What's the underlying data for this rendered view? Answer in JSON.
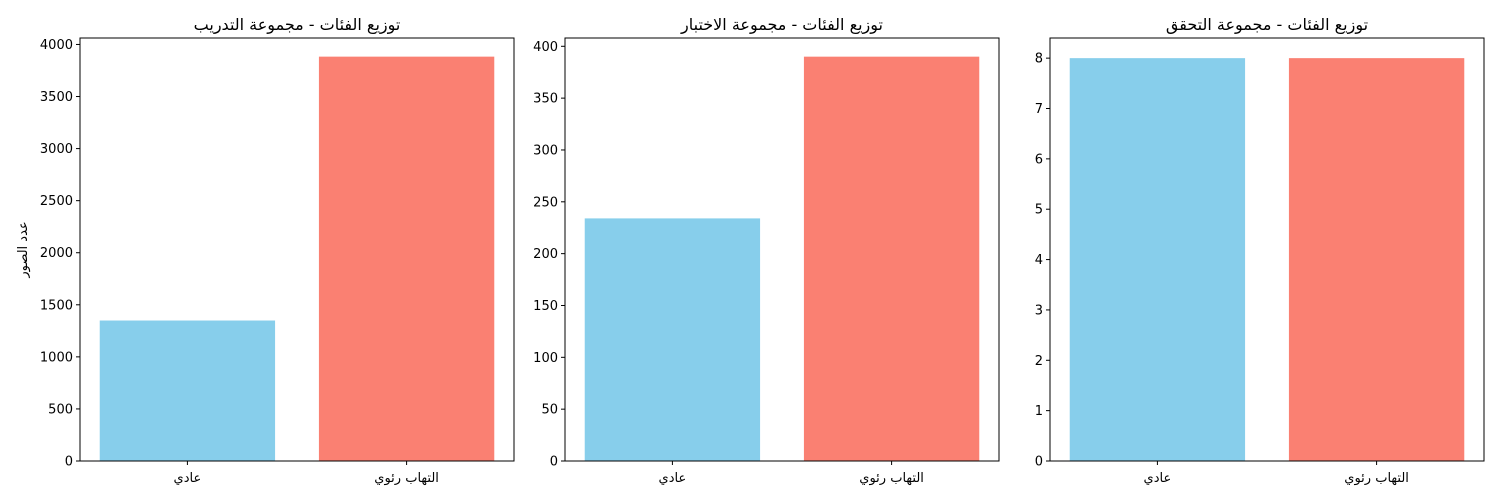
{
  "chart_data": [
    {
      "type": "bar",
      "title": "توزيع الفئات - مجموعة التدريب",
      "xlabel": "",
      "ylabel": "عدد الصور",
      "categories": [
        "عادي",
        "التهاب رئوي"
      ],
      "values": [
        1349,
        3883
      ],
      "colors": [
        "#87CEEB",
        "#FA8072"
      ],
      "ylim": [
        0,
        4062
      ],
      "yticks": [
        0,
        500,
        1000,
        1500,
        2000,
        2500,
        3000,
        3500,
        4000
      ],
      "grid": false
    },
    {
      "type": "bar",
      "title": "توزيع الفئات - مجموعة الاختبار",
      "xlabel": "",
      "ylabel": "",
      "categories": [
        "عادي",
        "التهاب رئوي"
      ],
      "values": [
        234,
        390
      ],
      "colors": [
        "#87CEEB",
        "#FA8072"
      ],
      "ylim": [
        0,
        408
      ],
      "yticks": [
        0,
        50,
        100,
        150,
        200,
        250,
        300,
        350,
        400
      ],
      "grid": false
    },
    {
      "type": "bar",
      "title": "توزيع الفئات - مجموعة التحقق",
      "xlabel": "",
      "ylabel": "",
      "categories": [
        "عادي",
        "التهاب رئوي"
      ],
      "values": [
        8,
        8
      ],
      "colors": [
        "#87CEEB",
        "#FA8072"
      ],
      "ylim": [
        0,
        8.4
      ],
      "yticks": [
        0,
        1,
        2,
        3,
        4,
        5,
        6,
        7,
        8
      ],
      "grid": false
    }
  ]
}
